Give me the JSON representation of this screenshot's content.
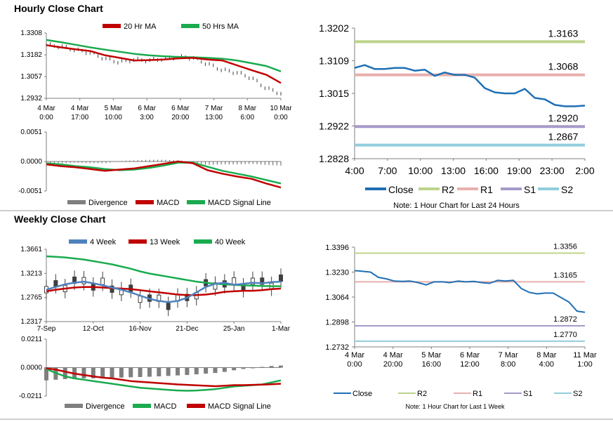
{
  "hourly_title": "Hourly Close Chart",
  "weekly_title": "Weekly Close Chart",
  "colors": {
    "ma20": "#c00000",
    "ma50": "#1aab4f",
    "close_hist": "#3f3f3f",
    "macd": "#c00000",
    "signal": "#1aab4f",
    "div": "#7f7f7f",
    "close_blue": "#1f6fb4",
    "r2": "#bcd48a",
    "r1": "#e8b0ad",
    "s1": "#a799c9",
    "s2": "#92cddc",
    "ma4": "#4f81bd",
    "ma13": "#c00000",
    "ma40": "#1aab4f"
  },
  "chart_data": [
    {
      "id": "hourly_price",
      "type": "line",
      "legend": [
        "20 Hr MA",
        "50 Hrs MA"
      ],
      "ylim": [
        1.2932,
        1.3308
      ],
      "yticks": [
        "1.3308",
        "1.3182",
        "1.3057",
        "1.2932"
      ],
      "xticks": [
        "4 Mar\n0:00",
        "4 Mar\n17:00",
        "5 Mar\n10:00",
        "6 Mar\n3:00",
        "6 Mar\n20:00",
        "7 Mar\n13:00",
        "8 Mar\n6:00",
        "10 Mar\n0:00"
      ],
      "series": [
        {
          "name": "20 Hr MA",
          "values": [
            1.3238,
            1.3225,
            1.3214,
            1.3204,
            1.318,
            1.3165,
            1.315,
            1.3152,
            1.3155,
            1.3162,
            1.3165,
            1.3155,
            1.315,
            1.3122,
            1.3094,
            1.3068,
            1.302
          ]
        },
        {
          "name": "50 Hrs MA",
          "values": [
            1.3268,
            1.3255,
            1.324,
            1.3225,
            1.3212,
            1.32,
            1.3188,
            1.318,
            1.3174,
            1.317,
            1.3168,
            1.3165,
            1.316,
            1.315,
            1.3134,
            1.3118,
            1.3087
          ]
        },
        {
          "name": "Close",
          "values": [
            1.324,
            1.323,
            1.321,
            1.3195,
            1.316,
            1.314,
            1.3155,
            1.315,
            1.316,
            1.317,
            1.3165,
            1.313,
            1.3095,
            1.308,
            1.305,
            1.299,
            1.296
          ]
        }
      ]
    },
    {
      "id": "hourly_macd",
      "type": "line",
      "legend": [
        "Divergence",
        "MACD",
        "MACD Signal Line"
      ],
      "ylim": [
        -0.0051,
        0.0051
      ],
      "yticks": [
        "0.0051",
        "0.0000",
        "-0.0051"
      ],
      "series": [
        {
          "name": "MACD",
          "values": [
            -0.0005,
            -0.0008,
            -0.001,
            -0.0013,
            -0.0016,
            -0.0014,
            -0.0012,
            -0.0008,
            -0.0004,
            0.0,
            -0.0003,
            -0.0015,
            -0.0021,
            -0.0026,
            -0.003,
            -0.0038,
            -0.0045
          ]
        },
        {
          "name": "MACD Signal Line",
          "values": [
            -0.0003,
            -0.0005,
            -0.0008,
            -0.001,
            -0.0013,
            -0.0015,
            -0.0014,
            -0.0011,
            -0.0007,
            -0.0002,
            -0.0002,
            -0.0009,
            -0.0016,
            -0.0021,
            -0.0026,
            -0.0032,
            -0.0038
          ]
        },
        {
          "name": "Divergence",
          "values": [
            -0.0002,
            -0.0003,
            -0.0002,
            -0.0003,
            -0.0003,
            0.0001,
            0.0002,
            0.0003,
            0.0003,
            0.0002,
            -0.0001,
            -0.0006,
            -0.0005,
            -0.0005,
            -0.0004,
            -0.0006,
            -0.0007
          ]
        }
      ]
    },
    {
      "id": "hourly_24h",
      "type": "line",
      "ylim": [
        1.2828,
        1.3202
      ],
      "yticks": [
        "1.3202",
        "1.3109",
        "1.3015",
        "1.2922",
        "1.2828"
      ],
      "xticks": [
        "4:00",
        "7:00",
        "10:00",
        "13:00",
        "16:00",
        "19:00",
        "23:00",
        "2:00"
      ],
      "levels": [
        {
          "name": "R2",
          "value": 1.3163,
          "label": "1.3163"
        },
        {
          "name": "R1",
          "value": 1.3068,
          "label": "1.3068"
        },
        {
          "name": "S1",
          "value": 1.292,
          "label": "1.2920"
        },
        {
          "name": "S2",
          "value": 1.2867,
          "label": "1.2867"
        }
      ],
      "series": [
        {
          "name": "Close",
          "values": [
            1.3088,
            1.3096,
            1.3085,
            1.3085,
            1.3088,
            1.3088,
            1.308,
            1.3083,
            1.3065,
            1.3075,
            1.3068,
            1.3068,
            1.306,
            1.303,
            1.3018,
            1.3015,
            1.3015,
            1.3028,
            1.3002,
            1.2998,
            1.2982,
            1.2978,
            1.2978,
            1.298
          ]
        }
      ],
      "legend": [
        "Close",
        "R2",
        "R1",
        "S1",
        "S2"
      ],
      "note": "Note: 1 Hour Chart for Last 24 Hours"
    },
    {
      "id": "weekly_price",
      "type": "line",
      "legend": [
        "4 Week",
        "13 Week",
        "40 Week"
      ],
      "ylim": [
        1.2317,
        1.3661
      ],
      "yticks": [
        "1.3661",
        "1.3213",
        "1.2765",
        "1.2317"
      ],
      "xticks": [
        "7-Sep",
        "12-Oct",
        "16-Nov",
        "21-Dec",
        "25-Jan",
        "1-Mar"
      ],
      "series": [
        {
          "name": "4 Week",
          "values": [
            1.291,
            1.296,
            1.301,
            1.304,
            1.306,
            1.303,
            1.299,
            1.295,
            1.291,
            1.286,
            1.28,
            1.274,
            1.27,
            1.268,
            1.27,
            1.276,
            1.286,
            1.296,
            1.302,
            1.304,
            1.3,
            1.302,
            1.304,
            1.303,
            1.305,
            1.306
          ]
        },
        {
          "name": "13 Week",
          "values": [
            1.288,
            1.291,
            1.293,
            1.295,
            1.296,
            1.296,
            1.295,
            1.294,
            1.293,
            1.292,
            1.29,
            1.288,
            1.286,
            1.284,
            1.282,
            1.281,
            1.281,
            1.282,
            1.284,
            1.287,
            1.288,
            1.289,
            1.289,
            1.29,
            1.292,
            1.293
          ]
        },
        {
          "name": "40 Week",
          "values": [
            1.353,
            1.352,
            1.351,
            1.349,
            1.347,
            1.344,
            1.341,
            1.338,
            1.334,
            1.33,
            1.325,
            1.321,
            1.318,
            1.315,
            1.312,
            1.309,
            1.306,
            1.304,
            1.302,
            1.301,
            1.3,
            1.299,
            1.2985,
            1.298,
            1.2975,
            1.2975
          ]
        }
      ]
    },
    {
      "id": "weekly_macd",
      "type": "line",
      "legend": [
        "Divergence",
        "MACD",
        "MACD Signal Line"
      ],
      "ylim": [
        -0.0211,
        0.0211
      ],
      "yticks": [
        "0.0211",
        "0.0000",
        "-0.0211"
      ],
      "series": [
        {
          "name": "MACD",
          "values": [
            -0.001,
            -0.004,
            -0.0065,
            -0.008,
            -0.009,
            -0.01,
            -0.011,
            -0.012,
            -0.013,
            -0.014,
            -0.015,
            -0.0155,
            -0.016,
            -0.0165,
            -0.017,
            -0.0172,
            -0.017,
            -0.0165,
            -0.016,
            -0.015,
            -0.014,
            -0.0135,
            -0.013,
            -0.0125,
            -0.011,
            -0.0095
          ]
        },
        {
          "name": "MACD Signal Line",
          "values": [
            -0.0005,
            -0.0015,
            -0.003,
            -0.0045,
            -0.0055,
            -0.0065,
            -0.0075,
            -0.008,
            -0.009,
            -0.01,
            -0.0105,
            -0.011,
            -0.0115,
            -0.012,
            -0.0125,
            -0.0128,
            -0.0132,
            -0.0135,
            -0.0138,
            -0.0135,
            -0.013,
            -0.013,
            -0.0128,
            -0.0126,
            -0.0124,
            -0.012
          ]
        },
        {
          "name": "Divergence",
          "values": [
            -0.0095,
            -0.009,
            -0.0085,
            -0.0085,
            -0.008,
            -0.008,
            -0.0078,
            -0.0076,
            -0.0074,
            -0.0072,
            -0.007,
            -0.0068,
            -0.0065,
            -0.0062,
            -0.0058,
            -0.0055,
            -0.005,
            -0.0045,
            -0.004,
            -0.0032,
            -0.002,
            -0.001,
            -0.0003,
            0.0005,
            0.0012,
            0.0015
          ]
        }
      ]
    },
    {
      "id": "weekly_week",
      "type": "line",
      "ylim": [
        1.2732,
        1.3396
      ],
      "yticks": [
        "1.3396",
        "1.3230",
        "1.3064",
        "1.2898",
        "1.2732"
      ],
      "xticks": [
        "4 Mar\n0:00",
        "4 Mar\n20:00",
        "5 Mar\n16:00",
        "6 Mar\n12:00",
        "7 Mar\n8:00",
        "8 Mar\n4:00",
        "11 Mar\n1:00"
      ],
      "levels": [
        {
          "name": "R2",
          "value": 1.3356,
          "label": "1.3356"
        },
        {
          "name": "R1",
          "value": 1.3165,
          "label": "1.3165"
        },
        {
          "name": "S1",
          "value": 1.2872,
          "label": "1.2872"
        },
        {
          "name": "S2",
          "value": 1.277,
          "label": "1.2770"
        }
      ],
      "series": [
        {
          "name": "Close",
          "values": [
            1.324,
            1.3235,
            1.323,
            1.3195,
            1.3185,
            1.317,
            1.3168,
            1.317,
            1.316,
            1.3145,
            1.3165,
            1.3165,
            1.316,
            1.317,
            1.3165,
            1.3168,
            1.316,
            1.3155,
            1.3175,
            1.317,
            1.3175,
            1.312,
            1.3095,
            1.3085,
            1.309,
            1.309,
            1.306,
            1.303,
            1.297,
            1.2962
          ]
        }
      ],
      "legend": [
        "Close",
        "R2",
        "R1",
        "S1",
        "S2"
      ],
      "note": "Note: 1 Hour Chart for Last 1 Week"
    }
  ]
}
